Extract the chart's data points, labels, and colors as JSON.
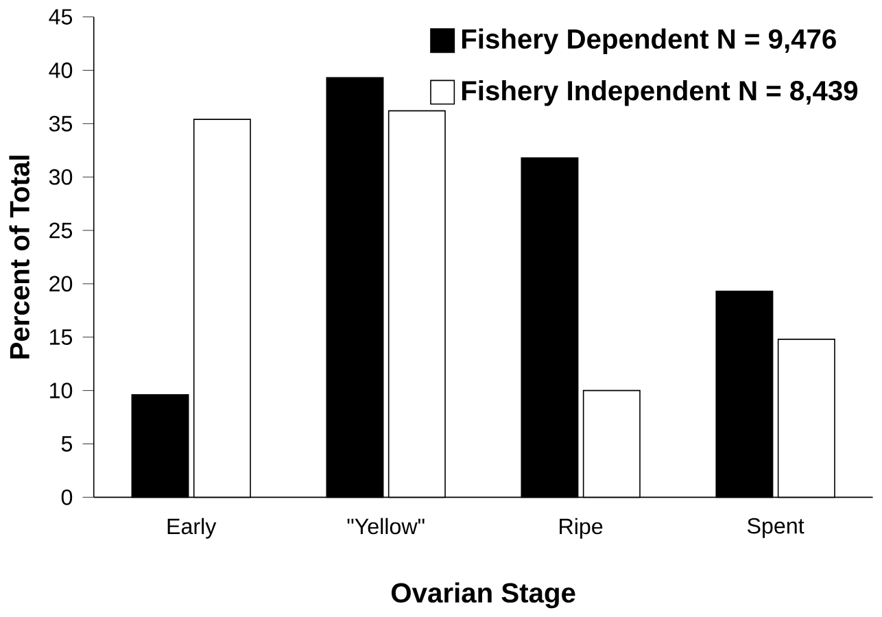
{
  "chart_data": {
    "type": "bar",
    "xlabel": "Ovarian Stage",
    "ylabel": "Percent of Total",
    "categories": [
      "Early",
      "\"Yellow\"",
      "Ripe",
      "Spent"
    ],
    "series": [
      {
        "name": "Fishery Dependent N = 9,476",
        "color": "#000000",
        "values": [
          9.6,
          39.3,
          31.8,
          19.3
        ]
      },
      {
        "name": "Fishery Independent N = 8,439",
        "color": "#ffffff",
        "values": [
          35.4,
          36.2,
          10.0,
          14.8
        ]
      }
    ],
    "ylim": [
      0,
      45
    ],
    "yticks": [
      0,
      5,
      10,
      15,
      20,
      25,
      30,
      35,
      40,
      45
    ],
    "grid": false,
    "legend": "top right"
  }
}
